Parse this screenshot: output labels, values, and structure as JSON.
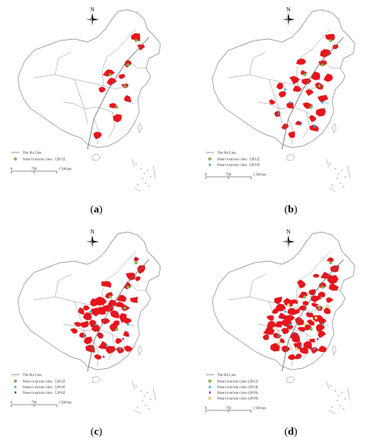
{
  "colors": {
    "region_fill": "#e8141c",
    "outline": "#8a8a8a",
    "huline": "#6e6e6e",
    "y2012": "#7fc241",
    "y2014": "#2fa7df",
    "y2016": "#8e2c8e",
    "y2018": "#f2ec78"
  },
  "map": {
    "north_label": "N",
    "hu_line_label": "The Hu Line",
    "scale_start": "0",
    "scale_mid": "750",
    "scale_end": "1 500",
    "scale_unit": "km"
  },
  "panels": [
    {
      "id": "a",
      "caption_open": "(",
      "caption_letter": "a",
      "caption_close": ")",
      "legend": [
        "Smart tourism cities（2012）"
      ]
    },
    {
      "id": "b",
      "caption_open": "(",
      "caption_letter": "b",
      "caption_close": ")",
      "legend": [
        "Smart tourism cities（2012）",
        "Smart tourism cities（2014）"
      ]
    },
    {
      "id": "c",
      "caption_open": "(",
      "caption_letter": "c",
      "caption_close": ")",
      "legend": [
        "Smart tourism cities（2012）",
        "Smart tourism cities（2014）",
        "Smart tourism cities（2016）"
      ]
    },
    {
      "id": "d",
      "caption_open": "(",
      "caption_letter": "d",
      "caption_close": ")",
      "legend": [
        "Smart tourism cities (2012)",
        "Smart tourism cities (2014)",
        "Smart tourism cities (2016)",
        "Smart tourism cities (2018)"
      ]
    }
  ]
}
